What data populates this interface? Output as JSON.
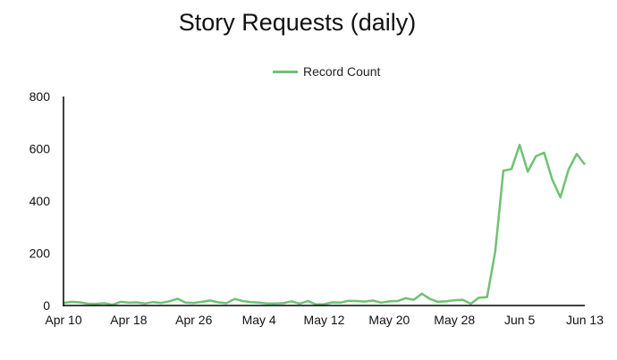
{
  "chart_data": {
    "type": "line",
    "title": "Story Requests (daily)",
    "xlabel": "",
    "ylabel": "",
    "legend_position": "top",
    "grid": false,
    "ylim": [
      0,
      800
    ],
    "y_ticks": [
      0,
      200,
      400,
      600,
      800
    ],
    "x_start": "Apr 10",
    "x_end": "Jun 13",
    "x_tick_labels": [
      "Apr 10",
      "Apr 18",
      "Apr 26",
      "May 4",
      "May 12",
      "May 20",
      "May 28",
      "Jun 5",
      "Jun 13"
    ],
    "series": [
      {
        "name": "Record Count",
        "color": "#6fc173",
        "values": [
          10,
          14,
          12,
          7,
          6,
          9,
          3,
          14,
          11,
          12,
          8,
          13,
          10,
          16,
          26,
          11,
          10,
          14,
          19,
          12,
          9,
          25,
          17,
          13,
          11,
          8,
          8,
          9,
          16,
          7,
          17,
          4,
          5,
          12,
          11,
          18,
          17,
          15,
          19,
          11,
          16,
          17,
          28,
          22,
          45,
          25,
          14,
          16,
          20,
          22,
          7,
          30,
          32,
          206,
          516,
          522,
          615,
          512,
          571,
          585,
          482,
          414,
          520,
          580,
          539
        ]
      }
    ]
  }
}
